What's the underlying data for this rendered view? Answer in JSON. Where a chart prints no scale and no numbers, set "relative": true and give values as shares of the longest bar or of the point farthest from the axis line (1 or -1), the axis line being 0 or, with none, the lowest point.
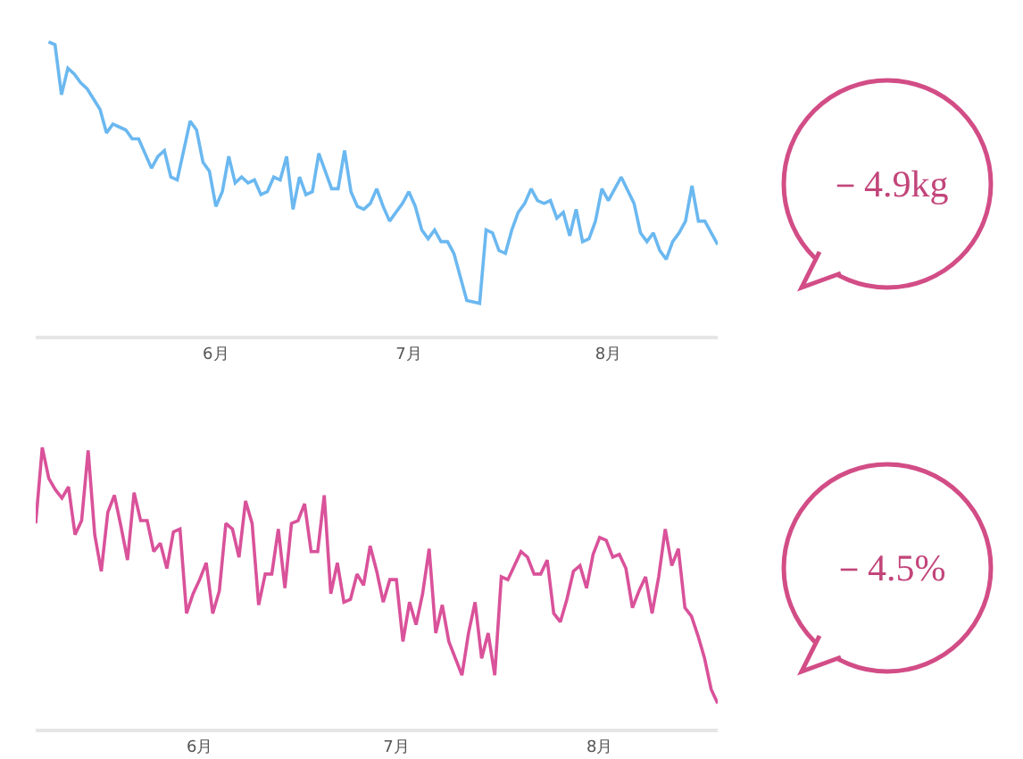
{
  "chart_data": [
    {
      "type": "line",
      "relative": true,
      "color": "#6bb8f0",
      "x": [
        "--05-06",
        "--05-07",
        "--05-08",
        "--05-09",
        "--05-10",
        "--05-11",
        "--05-12",
        "--05-14",
        "--05-15",
        "--05-16",
        "--05-17",
        "--05-18",
        "--05-19",
        "--05-20",
        "--05-22",
        "--05-23",
        "--05-24",
        "--05-25",
        "--05-26",
        "--05-28",
        "--05-29",
        "--05-30",
        "--05-31",
        "--06-01",
        "--06-02",
        "--06-03",
        "--06-04",
        "--06-05",
        "--06-06",
        "--06-07",
        "--06-08",
        "--06-09",
        "--06-10",
        "--06-11",
        "--06-12",
        "--06-13",
        "--06-14",
        "--06-15",
        "--06-16",
        "--06-17",
        "--06-19",
        "--06-20",
        "--06-21",
        "--06-22",
        "--06-23",
        "--06-24",
        "--06-25",
        "--06-26",
        "--06-27",
        "--06-28",
        "--06-30",
        "--07-01",
        "--07-02",
        "--07-03",
        "--07-04",
        "--07-05",
        "--07-06",
        "--07-07",
        "--07-08",
        "--07-10",
        "--07-12",
        "--07-13",
        "--07-14",
        "--07-15",
        "--07-16",
        "--07-17",
        "--07-18",
        "--07-19",
        "--07-20",
        "--07-21",
        "--07-22",
        "--07-23",
        "--07-24",
        "--07-25",
        "--07-26",
        "--07-27",
        "--07-28",
        "--07-29",
        "--07-30",
        "--07-31",
        "--08-01",
        "--08-03",
        "--08-05",
        "--08-06",
        "--08-07",
        "--08-08",
        "--08-09",
        "--08-10",
        "--08-11",
        "--08-12",
        "--08-13",
        "--08-14",
        "--08-15",
        "--08-16",
        "--08-17",
        "--08-18"
      ],
      "values": [
        1.0,
        0.99,
        0.82,
        0.91,
        0.89,
        0.86,
        0.84,
        0.77,
        0.69,
        0.72,
        0.71,
        0.7,
        0.67,
        0.67,
        0.57,
        0.61,
        0.63,
        0.54,
        0.53,
        0.73,
        0.7,
        0.59,
        0.56,
        0.44,
        0.49,
        0.61,
        0.52,
        0.54,
        0.52,
        0.53,
        0.48,
        0.49,
        0.54,
        0.53,
        0.61,
        0.43,
        0.54,
        0.48,
        0.49,
        0.62,
        0.5,
        0.5,
        0.63,
        0.49,
        0.44,
        0.43,
        0.45,
        0.5,
        0.44,
        0.39,
        0.45,
        0.49,
        0.44,
        0.36,
        0.33,
        0.36,
        0.32,
        0.32,
        0.28,
        0.12,
        0.11,
        0.36,
        0.35,
        0.29,
        0.28,
        0.36,
        0.42,
        0.45,
        0.5,
        0.46,
        0.45,
        0.46,
        0.4,
        0.42,
        0.34,
        0.43,
        0.32,
        0.33,
        0.39,
        0.5,
        0.46,
        0.54,
        0.45,
        0.35,
        0.32,
        0.35,
        0.29,
        0.26,
        0.32,
        0.35,
        0.39,
        0.51,
        0.39,
        0.39,
        0.35,
        0.31
      ],
      "xlim": [
        "--05-04",
        "--08-18"
      ],
      "xticks": [
        {
          "value": "--06-01",
          "label": "6月"
        },
        {
          "value": "--07-01",
          "label": "7月"
        },
        {
          "value": "--08-01",
          "label": "8月"
        }
      ],
      "annotations": [
        "－4.9kg"
      ]
    },
    {
      "type": "line",
      "relative": true,
      "color": "#d9529a",
      "x": [
        "--05-07",
        "--05-08",
        "--05-09",
        "--05-10",
        "--05-11",
        "--05-12",
        "--05-13",
        "--05-14",
        "--05-15",
        "--05-16",
        "--05-17",
        "--05-18",
        "--05-19",
        "--05-20",
        "--05-21",
        "--05-22",
        "--05-23",
        "--05-24",
        "--05-25",
        "--05-26",
        "--05-27",
        "--05-28",
        "--05-29",
        "--05-30",
        "--05-31",
        "--06-01",
        "--06-02",
        "--06-03",
        "--06-04",
        "--06-05",
        "--06-06",
        "--06-07",
        "--06-08",
        "--06-09",
        "--06-10",
        "--06-11",
        "--06-12",
        "--06-13",
        "--06-14",
        "--06-15",
        "--06-16",
        "--06-17",
        "--06-18",
        "--06-19",
        "--06-20",
        "--06-21",
        "--06-22",
        "--06-23",
        "--06-24",
        "--06-25",
        "--06-26",
        "--06-27",
        "--06-28",
        "--06-29",
        "--06-30",
        "--07-01",
        "--07-02",
        "--07-03",
        "--07-04",
        "--07-05",
        "--07-06",
        "--07-07",
        "--07-08",
        "--07-09",
        "--07-11",
        "--07-12",
        "--07-13",
        "--07-14",
        "--07-15",
        "--07-16",
        "--07-17",
        "--07-18",
        "--07-19",
        "--07-20",
        "--07-21",
        "--07-22",
        "--07-23",
        "--07-24",
        "--07-25",
        "--07-26",
        "--07-27",
        "--07-28",
        "--07-29",
        "--07-30",
        "--07-31",
        "--08-01",
        "--08-02",
        "--08-03",
        "--08-04",
        "--08-05",
        "--08-06",
        "--08-07",
        "--08-08",
        "--08-09",
        "--08-10",
        "--08-11",
        "--08-12",
        "--08-13",
        "--08-14",
        "--08-15",
        "--08-16",
        "--08-17",
        "--08-18",
        "--08-19"
      ],
      "values": [
        0.73,
        1.0,
        0.89,
        0.85,
        0.82,
        0.86,
        0.69,
        0.74,
        0.99,
        0.69,
        0.56,
        0.77,
        0.83,
        0.72,
        0.6,
        0.84,
        0.74,
        0.74,
        0.63,
        0.66,
        0.57,
        0.7,
        0.71,
        0.41,
        0.48,
        0.53,
        0.59,
        0.41,
        0.49,
        0.73,
        0.71,
        0.61,
        0.81,
        0.73,
        0.44,
        0.55,
        0.55,
        0.71,
        0.5,
        0.73,
        0.74,
        0.8,
        0.63,
        0.63,
        0.83,
        0.48,
        0.59,
        0.45,
        0.46,
        0.55,
        0.51,
        0.65,
        0.56,
        0.45,
        0.53,
        0.53,
        0.31,
        0.45,
        0.37,
        0.48,
        0.64,
        0.34,
        0.44,
        0.31,
        0.19,
        0.34,
        0.45,
        0.25,
        0.34,
        0.19,
        0.54,
        0.53,
        0.58,
        0.63,
        0.61,
        0.55,
        0.55,
        0.6,
        0.41,
        0.38,
        0.46,
        0.56,
        0.58,
        0.5,
        0.62,
        0.68,
        0.67,
        0.61,
        0.62,
        0.57,
        0.43,
        0.49,
        0.54,
        0.41,
        0.54,
        0.71,
        0.58,
        0.64,
        0.43,
        0.4,
        0.33,
        0.25,
        0.14,
        0.09
      ],
      "xlim": [
        "--05-07",
        "--08-19"
      ],
      "xticks": [
        {
          "value": "--06-01",
          "label": "6月"
        },
        {
          "value": "--07-01",
          "label": "7月"
        },
        {
          "value": "--08-01",
          "label": "8月"
        }
      ],
      "annotations": [
        "－4.5%"
      ]
    }
  ]
}
